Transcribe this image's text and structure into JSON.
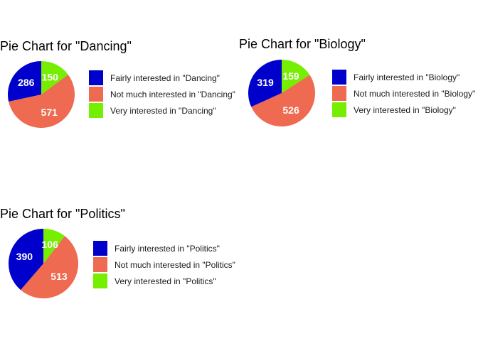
{
  "colors": {
    "fairly": "#0000CD",
    "not_much": "#EE6A50",
    "very": "#76EE00"
  },
  "chart_data": [
    {
      "type": "pie",
      "title": "Pie Chart for \"Dancing\"",
      "slices": [
        {
          "label": "Fairly interested in \"Dancing\"",
          "value": 286,
          "color": "#0000CD"
        },
        {
          "label": "Not much interested in \"Dancing\"",
          "value": 571,
          "color": "#EE6A50"
        },
        {
          "label": "Very interested in \"Dancing\"",
          "value": 150,
          "color": "#76EE00"
        }
      ],
      "legend_position": "right"
    },
    {
      "type": "pie",
      "title": "Pie Chart for \"Biology\"",
      "slices": [
        {
          "label": "Fairly interested in \"Biology\"",
          "value": 319,
          "color": "#0000CD"
        },
        {
          "label": "Not much interested in \"Biology\"",
          "value": 526,
          "color": "#EE6A50"
        },
        {
          "label": "Very interested in \"Biology\"",
          "value": 159,
          "color": "#76EE00"
        }
      ],
      "legend_position": "right"
    },
    {
      "type": "pie",
      "title": "Pie Chart for \"Politics\"",
      "slices": [
        {
          "label": "Fairly interested in \"Politics\"",
          "value": 390,
          "color": "#0000CD"
        },
        {
          "label": "Not much interested in \"Politics\"",
          "value": 513,
          "color": "#EE6A50"
        },
        {
          "label": "Very interested in \"Politics\"",
          "value": 106,
          "color": "#76EE00"
        }
      ],
      "legend_position": "right"
    }
  ]
}
